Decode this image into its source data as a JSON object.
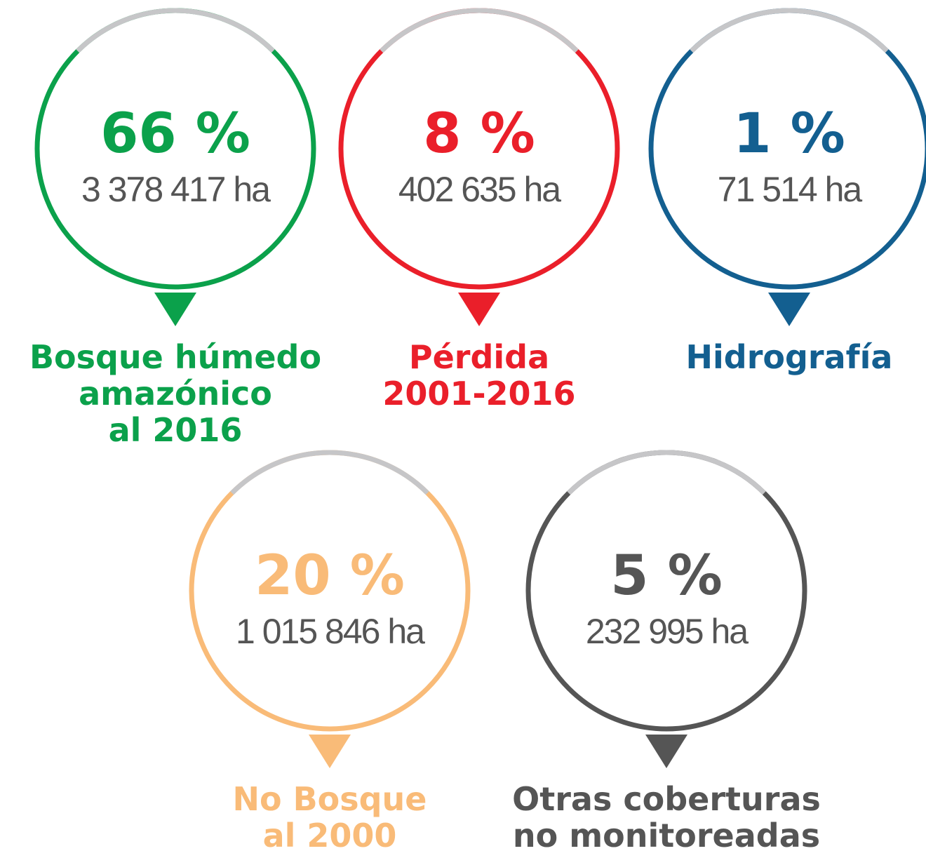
{
  "items": [
    {
      "percent": "66 %",
      "area": "3 378 417 ha",
      "label": [
        "Bosque húmedo",
        "amazónico",
        "al 2016"
      ],
      "color": "#0ba14b"
    },
    {
      "percent": "8 %",
      "area": "402 635 ha",
      "label": [
        "Pérdida",
        "2001-2016"
      ],
      "color": "#ea1f2a"
    },
    {
      "percent": "1 %",
      "area": "71 514 ha",
      "label": [
        "Hidrografía"
      ],
      "color": "#135f90"
    },
    {
      "percent": "20 %",
      "area": "1 015 846 ha",
      "label": [
        "No Bosque",
        "al 2000"
      ],
      "color": "#f9bb78"
    },
    {
      "percent": "5 %",
      "area": "232 995 ha",
      "label": [
        "Otras coberturas",
        "no monitoreadas"
      ],
      "color": "#555555"
    }
  ]
}
